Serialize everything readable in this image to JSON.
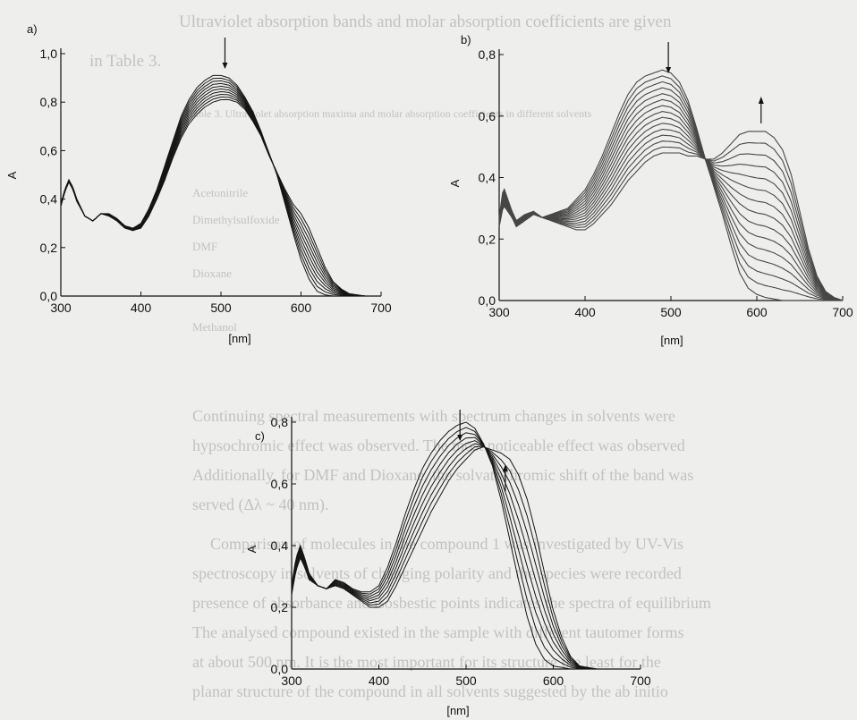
{
  "background_text": [
    "Ultraviolet absorption bands and molar absorption coefficients are given",
    "in Table 3.",
    "Table 3. Ultraviolet absorption maxima and molar absorption coefficients in different solvents",
    "Acetonitrile",
    "Dimethylsulfoxide",
    "DMF",
    "Dioxane",
    "Methanol",
    "Continuing spectral measurements with spectrum changes in solvents were",
    "hypsochromic effect was observed. The most noticeable effect was observed",
    "Additionally, for DMF and Dioxane, the solvatochromic shift of the band was",
    "served (Δλ ~ 40 nm).",
    "Comparison of molecules in the compound 1 was investigated by UV-Vis",
    "spectroscopy in solvents of changing polarity and the species were recorded",
    "presence of absorbance and isosbestic points indicates the spectra of equilibrium",
    "The analysed compound existed in the sample with different tautomer forms",
    "at about 500 nm. It is the most important for its structure the least for the",
    "planar structure of the compound in all solvents suggested by the ab initio"
  ],
  "chart_data": [
    {
      "type": "line",
      "panel_label": "a)",
      "xlabel": "[nm]",
      "ylabel": "A",
      "xlim": [
        300,
        700
      ],
      "ylim": [
        0.0,
        1.0
      ],
      "x_ticks": [
        "300",
        "400",
        "500",
        "600",
        "700"
      ],
      "y_ticks": [
        "0,0",
        "0,2",
        "0,4",
        "0,6",
        "0,8",
        "1,0"
      ],
      "grid": false,
      "arrow": {
        "direction": "down",
        "x": 505
      },
      "num_curves": 10,
      "curve_first": {
        "x": [
          300,
          305,
          310,
          315,
          320,
          330,
          340,
          350,
          360,
          370,
          380,
          390,
          400,
          410,
          420,
          430,
          440,
          450,
          460,
          470,
          480,
          490,
          500,
          510,
          520,
          530,
          540,
          550,
          560,
          570,
          580,
          590,
          600,
          610,
          620,
          630,
          640,
          650,
          660,
          670,
          680,
          690,
          700
        ],
        "y": [
          0.38,
          0.44,
          0.48,
          0.45,
          0.4,
          0.33,
          0.31,
          0.34,
          0.34,
          0.32,
          0.29,
          0.28,
          0.3,
          0.36,
          0.44,
          0.54,
          0.64,
          0.74,
          0.81,
          0.86,
          0.89,
          0.91,
          0.91,
          0.9,
          0.87,
          0.82,
          0.76,
          0.68,
          0.59,
          0.5,
          0.38,
          0.26,
          0.15,
          0.07,
          0.02,
          0.005,
          0.0,
          0.0,
          0.0,
          0.0,
          0.0,
          0.0,
          0.0
        ]
      },
      "curve_last": {
        "x": [
          300,
          305,
          310,
          315,
          320,
          330,
          340,
          350,
          360,
          370,
          380,
          390,
          400,
          410,
          420,
          430,
          440,
          450,
          460,
          470,
          480,
          490,
          500,
          510,
          520,
          530,
          540,
          550,
          560,
          570,
          580,
          590,
          600,
          610,
          620,
          630,
          640,
          650,
          660,
          670,
          680,
          690,
          700
        ],
        "y": [
          0.37,
          0.43,
          0.47,
          0.44,
          0.39,
          0.33,
          0.31,
          0.34,
          0.33,
          0.31,
          0.28,
          0.27,
          0.28,
          0.33,
          0.4,
          0.48,
          0.57,
          0.65,
          0.71,
          0.75,
          0.78,
          0.8,
          0.81,
          0.81,
          0.8,
          0.77,
          0.72,
          0.66,
          0.58,
          0.51,
          0.44,
          0.38,
          0.34,
          0.28,
          0.2,
          0.12,
          0.06,
          0.03,
          0.01,
          0.005,
          0.0,
          0.0,
          0.0
        ]
      }
    },
    {
      "type": "line",
      "panel_label": "b)",
      "xlabel": "[nm]",
      "ylabel": "A",
      "xlim": [
        300,
        700
      ],
      "ylim": [
        0.0,
        0.8
      ],
      "x_ticks": [
        "300",
        "400",
        "500",
        "600",
        "700"
      ],
      "y_ticks": [
        "0,0",
        "0,2",
        "0,4",
        "0,6",
        "0,8"
      ],
      "grid": false,
      "arrows": [
        {
          "direction": "down",
          "x": 497
        },
        {
          "direction": "up",
          "x": 605
        }
      ],
      "num_curves": 15,
      "curve_first": {
        "x": [
          300,
          305,
          310,
          315,
          320,
          330,
          340,
          350,
          360,
          370,
          380,
          390,
          400,
          410,
          420,
          430,
          440,
          450,
          460,
          470,
          480,
          490,
          500,
          510,
          520,
          530,
          540,
          550,
          560,
          570,
          580,
          590,
          600,
          610,
          620,
          630,
          640,
          650,
          660,
          670,
          680,
          690,
          700
        ],
        "y": [
          0.24,
          0.31,
          0.29,
          0.27,
          0.24,
          0.26,
          0.28,
          0.27,
          0.28,
          0.29,
          0.3,
          0.33,
          0.36,
          0.41,
          0.47,
          0.54,
          0.61,
          0.67,
          0.71,
          0.73,
          0.74,
          0.75,
          0.74,
          0.71,
          0.65,
          0.56,
          0.46,
          0.37,
          0.28,
          0.18,
          0.09,
          0.04,
          0.02,
          0.01,
          0.005,
          0.0,
          0.0,
          0.0,
          0.0,
          0.0,
          0.0,
          0.0,
          0.0
        ]
      },
      "curve_last": {
        "x": [
          300,
          305,
          310,
          315,
          320,
          330,
          340,
          350,
          360,
          370,
          380,
          390,
          400,
          410,
          420,
          430,
          440,
          450,
          460,
          470,
          480,
          490,
          500,
          510,
          520,
          530,
          540,
          550,
          560,
          570,
          580,
          590,
          600,
          610,
          620,
          630,
          640,
          650,
          660,
          670,
          680,
          690,
          700
        ],
        "y": [
          0.27,
          0.37,
          0.33,
          0.29,
          0.26,
          0.28,
          0.29,
          0.27,
          0.26,
          0.25,
          0.24,
          0.23,
          0.23,
          0.25,
          0.28,
          0.31,
          0.35,
          0.39,
          0.42,
          0.45,
          0.47,
          0.48,
          0.48,
          0.48,
          0.47,
          0.47,
          0.46,
          0.46,
          0.48,
          0.51,
          0.54,
          0.55,
          0.55,
          0.55,
          0.53,
          0.49,
          0.41,
          0.29,
          0.17,
          0.08,
          0.03,
          0.01,
          0.0
        ]
      }
    },
    {
      "type": "line",
      "panel_label": "c)",
      "xlabel": "[nm]",
      "ylabel": "A",
      "xlim": [
        300,
        700
      ],
      "ylim": [
        0.0,
        0.8
      ],
      "x_ticks": [
        "300",
        "400",
        "500",
        "600",
        "700"
      ],
      "y_ticks": [
        "0,0",
        "0,2",
        "0,4",
        "0,6",
        "0,8"
      ],
      "grid": false,
      "arrows": [
        {
          "direction": "down",
          "x": 493
        },
        {
          "direction": "up",
          "x": 545
        }
      ],
      "num_curves": 8,
      "curve_first": {
        "x": [
          300,
          305,
          310,
          315,
          320,
          330,
          340,
          350,
          360,
          370,
          380,
          390,
          400,
          410,
          420,
          430,
          440,
          450,
          460,
          470,
          480,
          490,
          500,
          510,
          520,
          530,
          540,
          550,
          560,
          570,
          580,
          590,
          600,
          610,
          620,
          630,
          640,
          650,
          660,
          670,
          680,
          690,
          700
        ],
        "y": [
          0.27,
          0.36,
          0.4,
          0.36,
          0.31,
          0.27,
          0.26,
          0.29,
          0.28,
          0.26,
          0.25,
          0.25,
          0.27,
          0.33,
          0.41,
          0.5,
          0.58,
          0.65,
          0.7,
          0.74,
          0.77,
          0.79,
          0.8,
          0.78,
          0.73,
          0.66,
          0.55,
          0.42,
          0.29,
          0.17,
          0.08,
          0.03,
          0.01,
          0.005,
          0.0,
          0.0,
          0.0,
          0.0,
          0.0,
          0.0,
          0.0,
          0.0,
          0.0
        ]
      },
      "curve_last": {
        "x": [
          300,
          305,
          310,
          315,
          320,
          330,
          340,
          350,
          360,
          370,
          380,
          390,
          400,
          410,
          420,
          430,
          440,
          450,
          460,
          470,
          480,
          490,
          500,
          510,
          520,
          530,
          540,
          550,
          560,
          570,
          580,
          590,
          600,
          610,
          620,
          630,
          640,
          650,
          660,
          670,
          680,
          690,
          700
        ],
        "y": [
          0.24,
          0.32,
          0.36,
          0.33,
          0.29,
          0.27,
          0.26,
          0.27,
          0.26,
          0.24,
          0.22,
          0.2,
          0.2,
          0.22,
          0.27,
          0.33,
          0.39,
          0.45,
          0.51,
          0.56,
          0.61,
          0.65,
          0.68,
          0.71,
          0.72,
          0.71,
          0.7,
          0.68,
          0.63,
          0.55,
          0.44,
          0.31,
          0.19,
          0.1,
          0.04,
          0.01,
          0.005,
          0.0,
          0.0,
          0.0,
          0.0,
          0.0,
          0.0
        ]
      }
    }
  ]
}
